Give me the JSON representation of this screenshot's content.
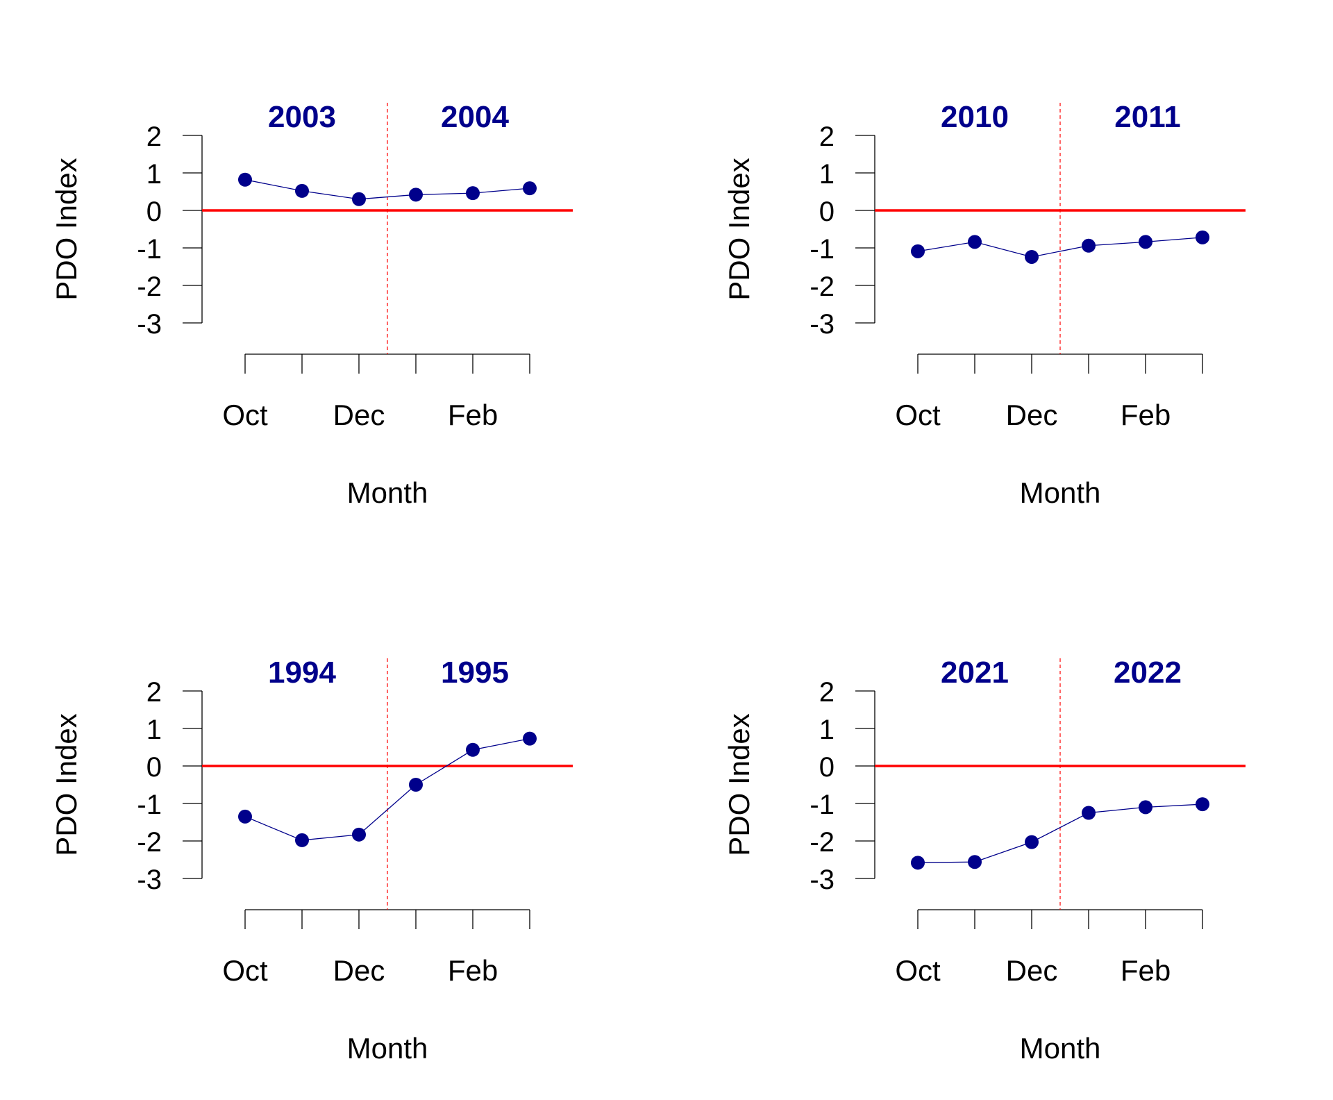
{
  "chart_data": [
    {
      "type": "line",
      "ylabel": "PDO Index",
      "xlabel": "Month",
      "year_labels": [
        "2003",
        "2004"
      ],
      "x": [
        "Oct",
        "Nov",
        "Dec",
        "Jan",
        "Feb",
        "Mar"
      ],
      "tick_labels": [
        "Oct",
        "",
        "Dec",
        "",
        "Feb",
        ""
      ],
      "values": [
        0.82,
        0.52,
        0.3,
        0.42,
        0.46,
        0.59
      ],
      "yticks": [
        "2",
        "1",
        "0",
        "-1",
        "-2",
        "-3"
      ],
      "ylim": [
        -3,
        2
      ],
      "reference_line": 0,
      "year_divider": "between Dec and Jan"
    },
    {
      "type": "line",
      "ylabel": "PDO Index",
      "xlabel": "Month",
      "year_labels": [
        "2010",
        "2011"
      ],
      "x": [
        "Oct",
        "Nov",
        "Dec",
        "Jan",
        "Feb",
        "Mar"
      ],
      "tick_labels": [
        "Oct",
        "",
        "Dec",
        "",
        "Feb",
        ""
      ],
      "values": [
        -1.09,
        -0.84,
        -1.24,
        -0.94,
        -0.84,
        -0.72
      ],
      "yticks": [
        "2",
        "1",
        "0",
        "-1",
        "-2",
        "-3"
      ],
      "ylim": [
        -3,
        2
      ],
      "reference_line": 0,
      "year_divider": "between Dec and Jan"
    },
    {
      "type": "line",
      "ylabel": "PDO Index",
      "xlabel": "Month",
      "year_labels": [
        "1994",
        "1995"
      ],
      "x": [
        "Oct",
        "Nov",
        "Dec",
        "Jan",
        "Feb",
        "Mar"
      ],
      "tick_labels": [
        "Oct",
        "",
        "Dec",
        "",
        "Feb",
        ""
      ],
      "values": [
        -1.35,
        -1.98,
        -1.83,
        -0.5,
        0.43,
        0.73
      ],
      "yticks": [
        "2",
        "1",
        "0",
        "-1",
        "-2",
        "-3"
      ],
      "ylim": [
        -3,
        2
      ],
      "reference_line": 0,
      "year_divider": "between Dec and Jan"
    },
    {
      "type": "line",
      "ylabel": "PDO Index",
      "xlabel": "Month",
      "year_labels": [
        "2021",
        "2022"
      ],
      "x": [
        "Oct",
        "Nov",
        "Dec",
        "Jan",
        "Feb",
        "Mar"
      ],
      "tick_labels": [
        "Oct",
        "",
        "Dec",
        "",
        "Feb",
        ""
      ],
      "values": [
        -2.58,
        -2.56,
        -2.03,
        -1.25,
        -1.1,
        -1.02
      ],
      "yticks": [
        "2",
        "1",
        "0",
        "-1",
        "-2",
        "-3"
      ],
      "ylim": [
        -3,
        2
      ],
      "reference_line": 0,
      "year_divider": "between Dec and Jan"
    }
  ],
  "colors": {
    "series": "#00008b",
    "year_label": "#00008b",
    "reference_line": "#ff0000",
    "axis": "#000000"
  }
}
